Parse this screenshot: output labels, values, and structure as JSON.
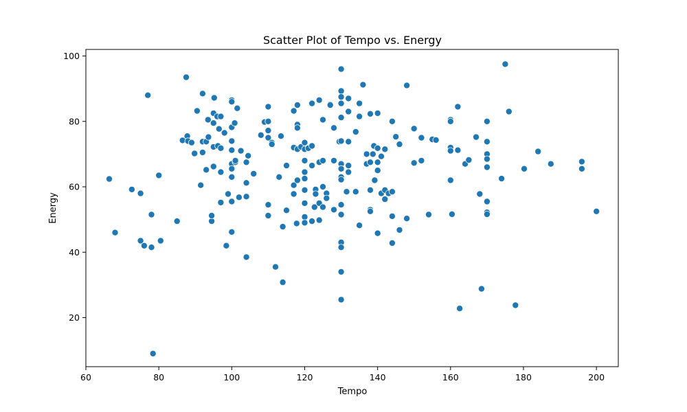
{
  "chart_data": {
    "type": "scatter",
    "title": "Scatter Plot of Tempo vs. Energy",
    "xlabel": "Tempo",
    "ylabel": "Energy",
    "xlim": [
      60,
      206
    ],
    "ylim": [
      5,
      102
    ],
    "x_ticks": [
      60,
      80,
      100,
      120,
      140,
      160,
      180,
      200
    ],
    "y_ticks": [
      20,
      40,
      60,
      80,
      100
    ],
    "grid": false,
    "legend": "none",
    "colors": {
      "marker": "#1f77b4",
      "marker_edge": "#ffffff",
      "axis": "#000000"
    },
    "series": [
      {
        "points": [
          [
            66.4,
            62.4
          ],
          [
            68,
            46
          ],
          [
            72.6,
            59.2
          ],
          [
            75,
            58
          ],
          [
            75,
            43.5
          ],
          [
            76,
            42
          ],
          [
            77,
            88
          ],
          [
            78,
            51.5
          ],
          [
            78,
            41.5
          ],
          [
            78.4,
            9
          ],
          [
            80,
            63.5
          ],
          [
            80.5,
            43.5
          ],
          [
            85,
            49.5
          ],
          [
            86.5,
            74.2
          ],
          [
            87.5,
            93.5
          ],
          [
            87.8,
            75.5
          ],
          [
            88,
            74
          ],
          [
            89,
            73.5
          ],
          [
            89.8,
            70.2
          ],
          [
            90.5,
            83.2
          ],
          [
            91.5,
            60.5
          ],
          [
            92,
            88.5
          ],
          [
            92,
            70.5
          ],
          [
            92,
            73.8
          ],
          [
            93,
            73.8
          ],
          [
            93,
            65.2
          ],
          [
            93.5,
            80.5
          ],
          [
            93.6,
            75.2
          ],
          [
            94.5,
            49.5
          ],
          [
            94.5,
            51.2
          ],
          [
            95,
            66.2
          ],
          [
            95,
            72.2
          ],
          [
            95,
            79.5
          ],
          [
            95,
            82.5
          ],
          [
            95.2,
            87.2
          ],
          [
            96,
            81.5
          ],
          [
            96.2,
            72.5
          ],
          [
            96.5,
            77.7
          ],
          [
            97,
            81.5
          ],
          [
            97,
            55.2
          ],
          [
            97,
            64.5
          ],
          [
            97,
            71.8
          ],
          [
            98,
            76.5
          ],
          [
            98.5,
            42
          ],
          [
            99,
            57.8
          ],
          [
            100,
            86.5
          ],
          [
            100,
            86
          ],
          [
            100,
            78.2
          ],
          [
            100,
            74
          ],
          [
            100,
            71.2
          ],
          [
            100,
            67
          ],
          [
            100,
            65.5
          ],
          [
            100,
            63
          ],
          [
            100,
            55.5
          ],
          [
            100,
            46.2
          ],
          [
            100.8,
            79.5
          ],
          [
            101,
            67.5
          ],
          [
            101,
            68
          ],
          [
            101.5,
            84
          ],
          [
            102,
            56.8
          ],
          [
            102.5,
            71
          ],
          [
            104,
            38.5
          ],
          [
            104,
            61.2
          ],
          [
            104,
            57
          ],
          [
            104,
            67.5
          ],
          [
            104.5,
            69.5
          ],
          [
            106,
            64
          ],
          [
            108,
            75.8
          ],
          [
            109,
            79.8
          ],
          [
            110,
            80
          ],
          [
            110,
            84.5
          ],
          [
            110,
            77.2
          ],
          [
            110,
            75
          ],
          [
            110,
            54.5
          ],
          [
            110,
            51.2
          ],
          [
            111,
            73.5
          ],
          [
            111,
            73
          ],
          [
            112,
            35.5
          ],
          [
            113,
            63
          ],
          [
            113.5,
            75.5
          ],
          [
            114,
            47.8
          ],
          [
            114,
            30.8
          ],
          [
            115,
            66.5
          ],
          [
            115,
            52.8
          ],
          [
            117,
            83.2
          ],
          [
            117,
            72
          ],
          [
            117,
            60.5
          ],
          [
            117,
            57.8
          ],
          [
            117.8,
            48.8
          ],
          [
            118,
            85
          ],
          [
            118,
            79
          ],
          [
            118,
            78
          ],
          [
            118,
            71.5
          ],
          [
            118,
            62
          ],
          [
            119,
            72.2
          ],
          [
            120,
            71.5
          ],
          [
            120,
            73.5
          ],
          [
            120,
            68
          ],
          [
            120,
            64.5
          ],
          [
            120,
            62.5
          ],
          [
            120,
            59
          ],
          [
            120,
            55
          ],
          [
            120,
            50.8
          ],
          [
            120,
            49
          ],
          [
            121,
            71.8
          ],
          [
            122,
            72.5
          ],
          [
            122,
            85.5
          ],
          [
            122,
            66.5
          ],
          [
            122,
            49.5
          ],
          [
            122.7,
            53.8
          ],
          [
            123,
            59.2
          ],
          [
            123,
            57.8
          ],
          [
            124,
            86.5
          ],
          [
            124,
            67.5
          ],
          [
            124,
            55
          ],
          [
            124,
            49.8
          ],
          [
            125,
            80.5
          ],
          [
            125,
            68
          ],
          [
            125,
            60
          ],
          [
            125,
            53.8
          ],
          [
            126,
            58
          ],
          [
            126,
            56.5
          ],
          [
            127,
            85.2
          ],
          [
            127,
            85
          ],
          [
            128,
            78
          ],
          [
            128,
            68
          ],
          [
            128,
            53
          ],
          [
            129.5,
            73.8
          ],
          [
            130,
            96
          ],
          [
            130,
            89.3
          ],
          [
            130,
            87.5
          ],
          [
            130,
            85.5
          ],
          [
            130,
            81.2
          ],
          [
            130,
            74
          ],
          [
            130,
            67
          ],
          [
            130,
            65.5
          ],
          [
            130,
            63
          ],
          [
            130,
            62.2
          ],
          [
            130,
            54.5
          ],
          [
            130,
            51.5
          ],
          [
            130,
            43
          ],
          [
            130,
            41.5
          ],
          [
            130,
            34
          ],
          [
            130,
            25.5
          ],
          [
            131.5,
            58.5
          ],
          [
            132,
            87
          ],
          [
            132,
            83
          ],
          [
            132,
            73.8
          ],
          [
            132,
            66.5
          ],
          [
            132,
            64.5
          ],
          [
            134,
            58.5
          ],
          [
            134,
            76.8
          ],
          [
            135,
            85.5
          ],
          [
            135,
            81.5
          ],
          [
            135,
            48.2
          ],
          [
            136,
            91.2
          ],
          [
            137,
            70
          ],
          [
            137,
            67
          ],
          [
            138,
            82.3
          ],
          [
            138,
            67.5
          ],
          [
            138,
            59
          ],
          [
            138,
            53
          ],
          [
            138,
            52.5
          ],
          [
            138.7,
            70
          ],
          [
            139,
            72.5
          ],
          [
            139.2,
            62
          ],
          [
            140,
            82.5
          ],
          [
            140,
            71.8
          ],
          [
            140,
            67.5
          ],
          [
            140,
            65
          ],
          [
            140,
            45.8
          ],
          [
            141,
            69.3
          ],
          [
            141,
            58
          ],
          [
            142,
            71.5
          ],
          [
            142,
            59
          ],
          [
            142,
            56.2
          ],
          [
            143,
            58
          ],
          [
            144,
            80
          ],
          [
            144,
            58.5
          ],
          [
            144,
            51
          ],
          [
            144,
            42.8
          ],
          [
            145,
            75.3
          ],
          [
            146,
            73
          ],
          [
            146,
            46.8
          ],
          [
            148,
            91
          ],
          [
            148,
            50.3
          ],
          [
            150,
            77.8
          ],
          [
            150,
            67.3
          ],
          [
            152,
            75
          ],
          [
            152,
            68
          ],
          [
            154,
            51.5
          ],
          [
            155,
            74.5
          ],
          [
            156,
            74.3
          ],
          [
            160,
            80.5
          ],
          [
            160,
            80
          ],
          [
            160,
            72
          ],
          [
            160,
            71
          ],
          [
            160,
            62
          ],
          [
            160.4,
            51.6
          ],
          [
            162,
            84.5
          ],
          [
            162,
            71.2
          ],
          [
            162.5,
            22.8
          ],
          [
            164,
            67
          ],
          [
            165,
            68.2
          ],
          [
            167,
            75.2
          ],
          [
            168,
            57.8
          ],
          [
            168.5,
            28.8
          ],
          [
            170,
            80
          ],
          [
            170,
            73.8
          ],
          [
            170,
            70
          ],
          [
            170,
            68.5
          ],
          [
            170,
            66
          ],
          [
            170,
            55.5
          ],
          [
            170,
            52.2
          ],
          [
            170,
            51.6
          ],
          [
            174,
            62.5
          ],
          [
            175,
            97.5
          ],
          [
            176,
            83
          ],
          [
            177.8,
            23.8
          ],
          [
            180.2,
            65.5
          ],
          [
            184,
            70.8
          ],
          [
            187.5,
            67
          ],
          [
            196,
            67.7
          ],
          [
            196,
            65.5
          ],
          [
            200,
            52.5
          ]
        ]
      }
    ]
  }
}
